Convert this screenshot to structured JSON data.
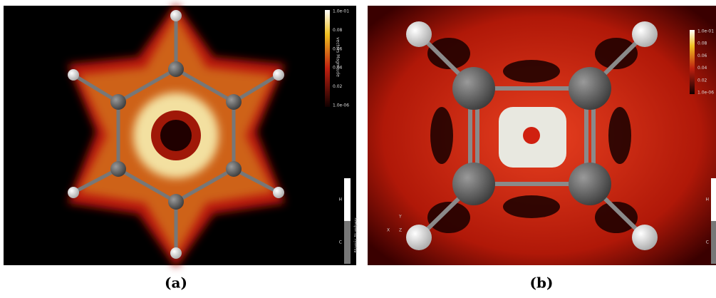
{
  "panels": [
    {
      "caption": "(a)",
      "colorbar": {
        "title": "vectors Magnitude",
        "ticks": [
          "1.0e-01",
          "0.08",
          "0.06",
          "0.04",
          "0.02",
          "1.0e-06"
        ]
      },
      "atom_legend": {
        "title": "Atomic Numbers",
        "labels": [
          "H",
          "C"
        ]
      }
    },
    {
      "caption": "(b)",
      "colorbar": {
        "ticks": [
          "1.0e-01",
          "0.08",
          "0.06",
          "0.04",
          "0.02",
          "1.0e-06"
        ]
      },
      "atom_legend": {
        "labels": [
          "H",
          "C"
        ]
      },
      "axes": [
        "Y",
        "X",
        "Z"
      ]
    }
  ]
}
